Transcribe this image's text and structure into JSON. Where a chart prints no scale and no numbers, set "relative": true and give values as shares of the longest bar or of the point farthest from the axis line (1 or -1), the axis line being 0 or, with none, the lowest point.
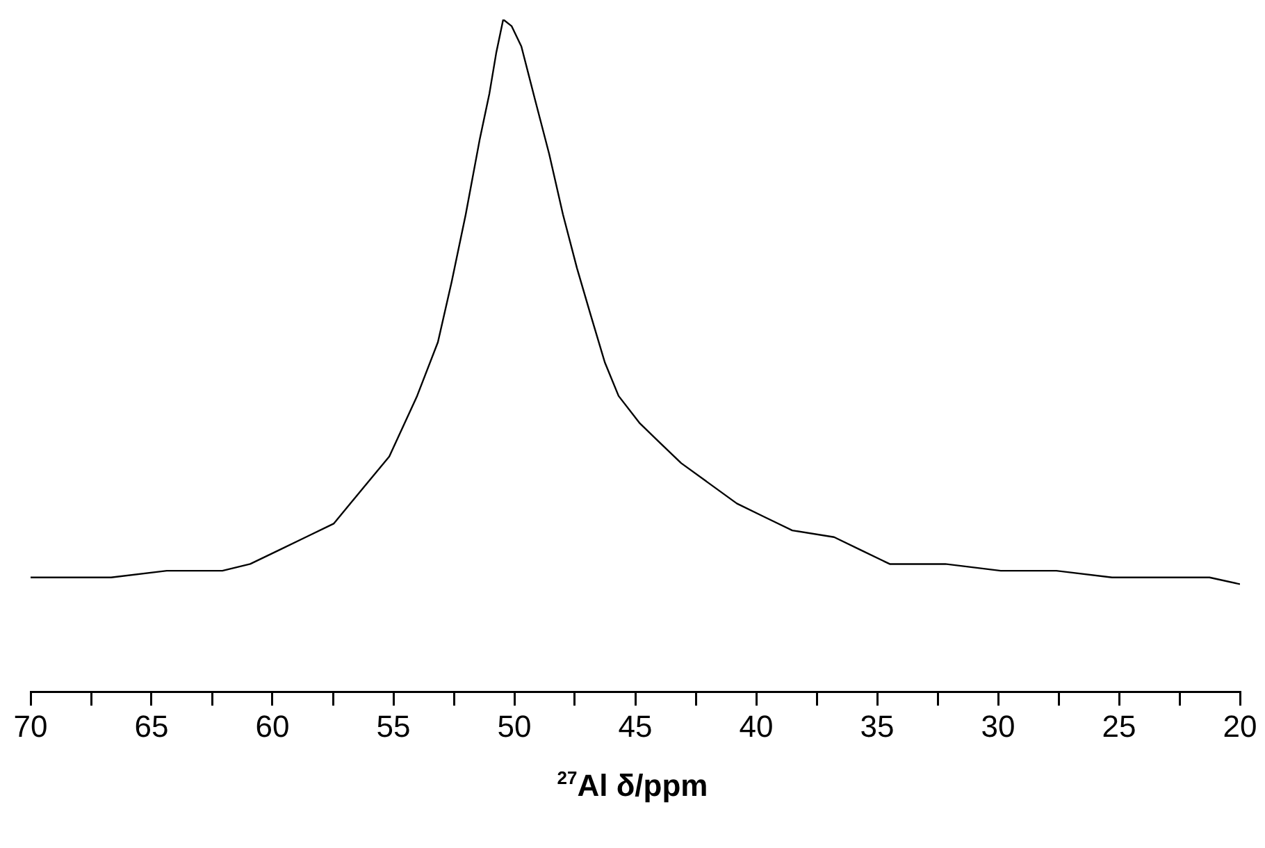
{
  "chart_data": {
    "type": "line",
    "xlabel": "$^{27}$Al δ/ppm",
    "relative": true,
    "xlim": [
      70,
      20
    ],
    "xticks": [
      70,
      {
        "value": 67.5,
        "label": null
      },
      65,
      {
        "value": 62.5,
        "label": null
      },
      60,
      {
        "value": 57.5,
        "label": null
      },
      55,
      {
        "value": 52.5,
        "label": null
      },
      50,
      {
        "value": 47.5,
        "label": null
      },
      45,
      {
        "value": 42.5,
        "label": null
      },
      40,
      {
        "value": 37.5,
        "label": null
      },
      35,
      {
        "value": 32.5,
        "label": null
      },
      30,
      {
        "value": 27.5,
        "label": null
      },
      25,
      {
        "value": 22.5,
        "label": null
      },
      20
    ],
    "tick_labels": "x",
    "grid": false,
    "legend": false,
    "marker": "none",
    "line_style": "solid",
    "series": [
      {
        "color": "#000000",
        "x": [
          70.0,
          68.97,
          67.82,
          66.67,
          64.37,
          62.07,
          60.92,
          59.77,
          58.62,
          57.47,
          56.32,
          55.17,
          54.02,
          53.16,
          52.59,
          52.01,
          51.44,
          51.03,
          50.75,
          50.46,
          50.11,
          49.71,
          49.14,
          48.56,
          47.99,
          47.41,
          46.84,
          46.26,
          45.69,
          44.83,
          43.97,
          43.1,
          41.95,
          40.8,
          39.66,
          38.51,
          36.78,
          35.63,
          34.48,
          32.18,
          29.89,
          27.59,
          25.29,
          22.99,
          21.26,
          20.0
        ],
        "values": [
          0.17,
          0.17,
          0.17,
          0.17,
          0.18,
          0.18,
          0.19,
          0.21,
          0.23,
          0.25,
          0.3,
          0.35,
          0.44,
          0.52,
          0.61,
          0.71,
          0.82,
          0.89,
          0.95,
          1,
          0.99,
          0.96,
          0.88,
          0.8,
          0.71,
          0.63,
          0.56,
          0.49,
          0.44,
          0.4,
          0.37,
          0.34,
          0.31,
          0.28,
          0.26,
          0.24,
          0.23,
          0.21,
          0.19,
          0.19,
          0.18,
          0.18,
          0.17,
          0.17,
          0.17,
          0.16
        ]
      }
    ]
  }
}
